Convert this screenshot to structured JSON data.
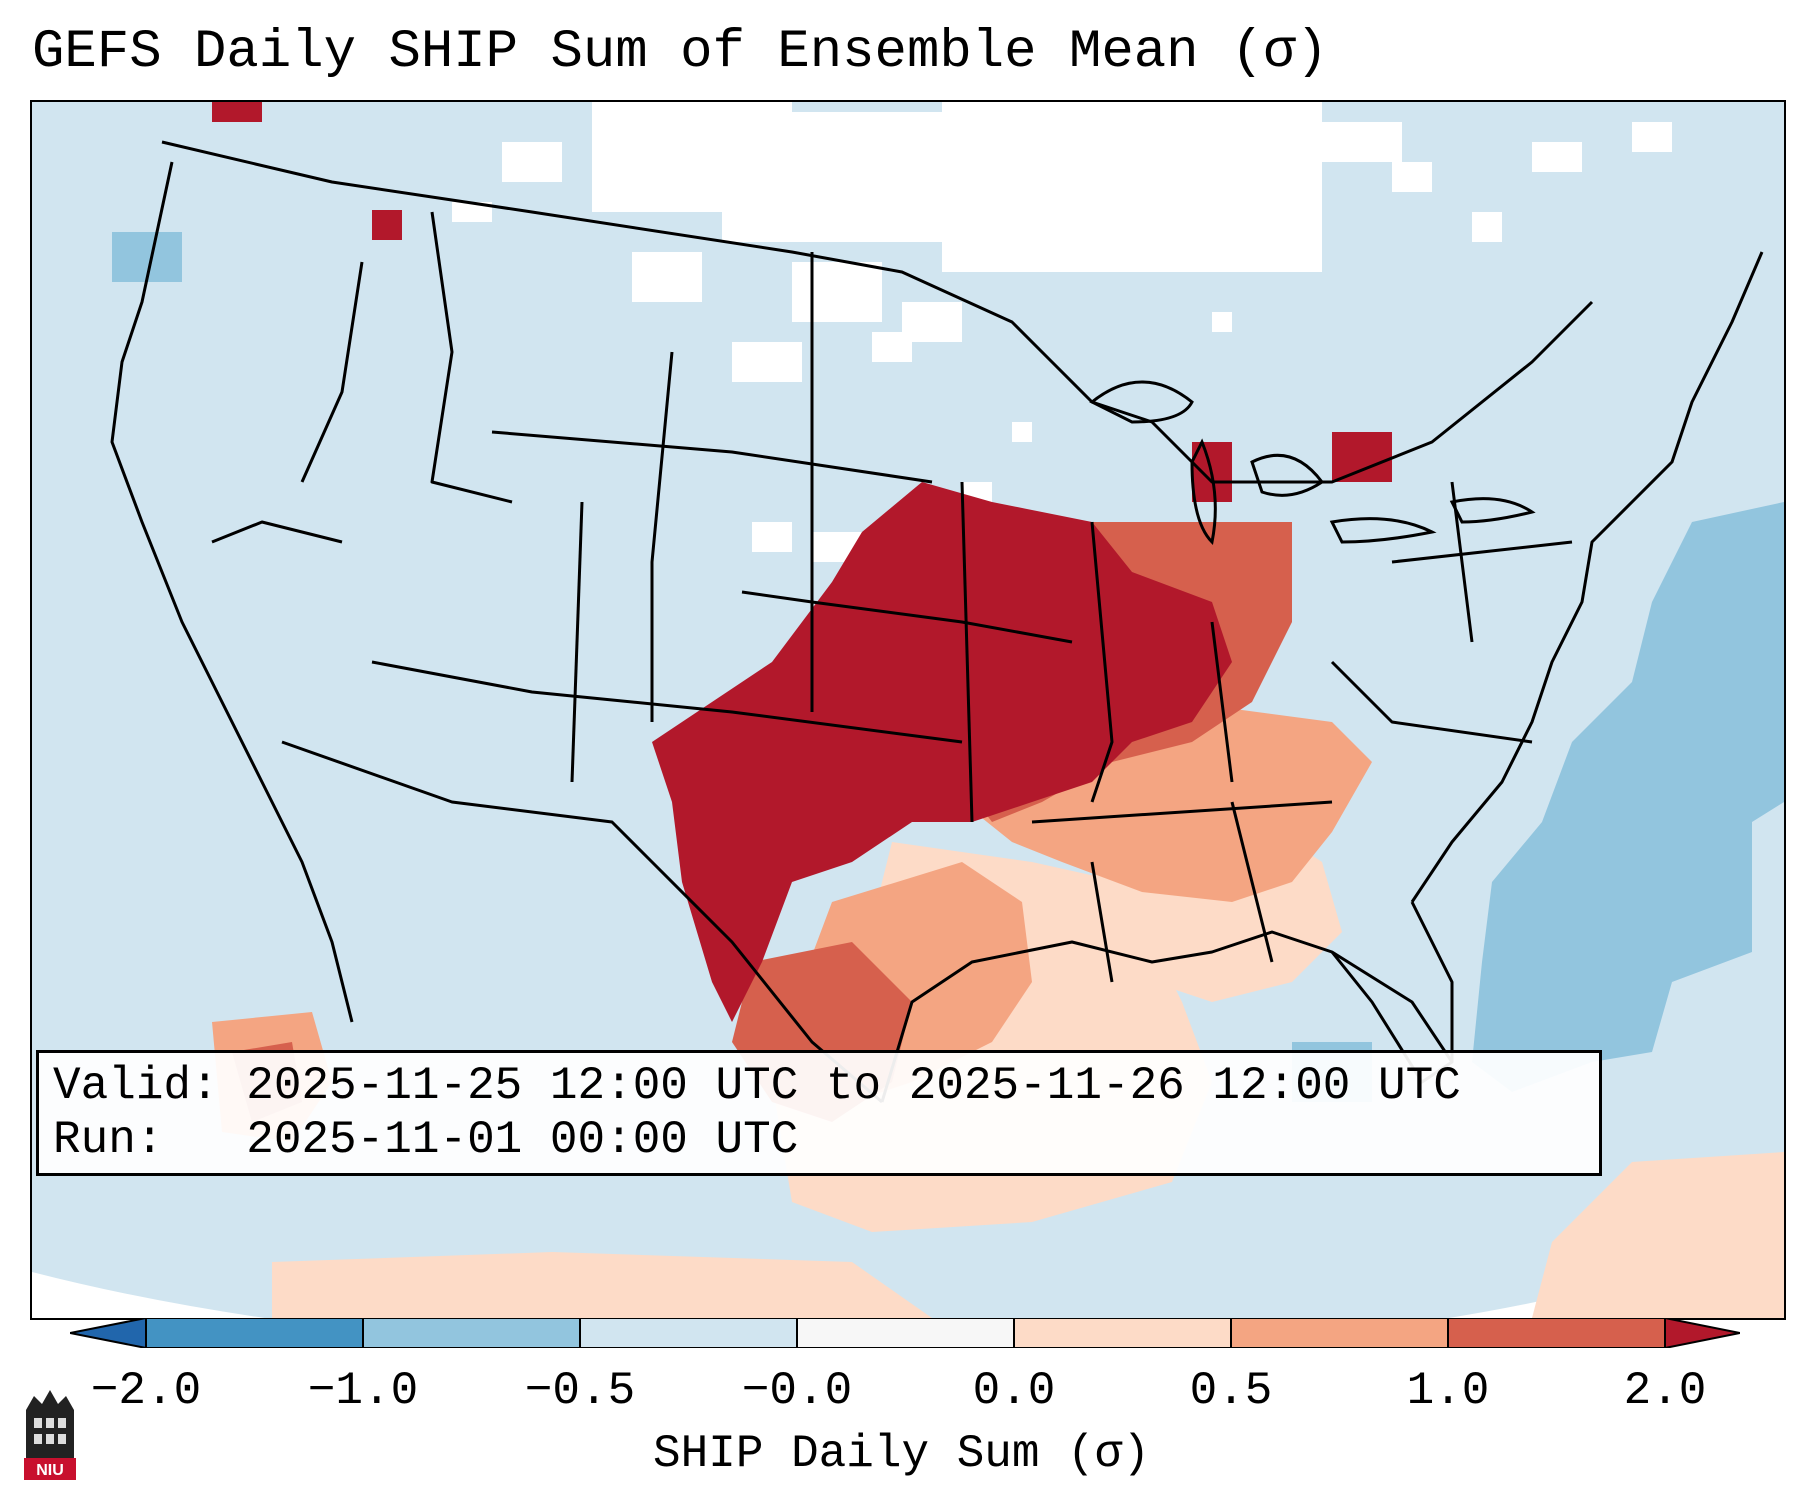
{
  "title": "GEFS Daily SHIP Sum of Ensemble Mean (σ)",
  "info": {
    "valid_line": "Valid: 2025-11-25 12:00 UTC to 2025-11-26 12:00 UTC",
    "run_line": "Run:   2025-11-01 00:00 UTC"
  },
  "colorbar": {
    "label": "SHIP Daily Sum (σ)",
    "ticks": [
      "−2.0",
      "−1.0",
      "−0.5",
      "−0.0",
      "0.0",
      "0.5",
      "1.0",
      "2.0"
    ],
    "colors": [
      "#4393c3",
      "#92c5de",
      "#d1e5f0",
      "#f7f7f7",
      "#fddbc7",
      "#f4a582",
      "#d6604d",
      "#b2182b"
    ],
    "extend_low_color": "#2166ac",
    "extend_high_color": "#b2182b"
  },
  "map": {
    "ocean_land_color": "#d1e5f0",
    "region_fills": [
      {
        "region": "central-plains-core",
        "category": "> 1.0"
      },
      {
        "region": "mid-mississippi-valley",
        "category": "0.5 to 1.0"
      },
      {
        "region": "gulf-coast-south",
        "category": "0.0 to 0.5"
      },
      {
        "region": "western-atlantic",
        "category": "-1.0 to -0.5"
      }
    ]
  },
  "logo": {
    "text": "NIU"
  }
}
